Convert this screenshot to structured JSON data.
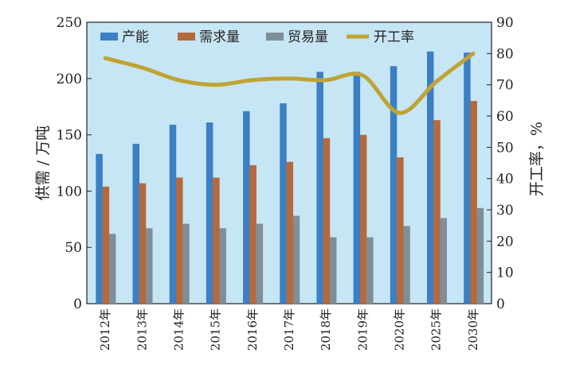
{
  "chart_data": {
    "type": "bar",
    "categories": [
      "2012年",
      "2013年",
      "2014年",
      "2015年",
      "2016年",
      "2017年",
      "2018年",
      "2019年",
      "2020年",
      "2025年",
      "2030年"
    ],
    "series": [
      {
        "name": "产能",
        "type": "bar",
        "axis": "left",
        "color": "#3b7fc4",
        "values": [
          133,
          142,
          159,
          161,
          171,
          178,
          206,
          206,
          211,
          224,
          223
        ]
      },
      {
        "name": "需求量",
        "type": "bar",
        "axis": "left",
        "color": "#b5693c",
        "values": [
          104,
          107,
          112,
          112,
          123,
          126,
          147,
          150,
          130,
          163,
          180
        ]
      },
      {
        "name": "贸易量",
        "type": "bar",
        "axis": "left",
        "color": "#7f8e98",
        "values": [
          62,
          67,
          71,
          67,
          71,
          78,
          59,
          59,
          69,
          76,
          85
        ]
      },
      {
        "name": "开工率",
        "type": "line",
        "axis": "right",
        "color": "#bfa333",
        "values": [
          78.5,
          75.5,
          71.5,
          70,
          71.5,
          72,
          71.5,
          73,
          61,
          71,
          80
        ]
      }
    ],
    "ylabel": "供需 / 万吨",
    "y2label": "开工率，%",
    "ylim": [
      0,
      250
    ],
    "y2lim": [
      0,
      90
    ],
    "yticks": [
      "0",
      "50",
      "100",
      "150",
      "200",
      "250"
    ],
    "y2ticks": [
      "0",
      "10",
      "20",
      "30",
      "40",
      "50",
      "60",
      "70",
      "80",
      "90"
    ],
    "legend_position": "top",
    "background_color": "#c6e6f5",
    "grid": false
  }
}
